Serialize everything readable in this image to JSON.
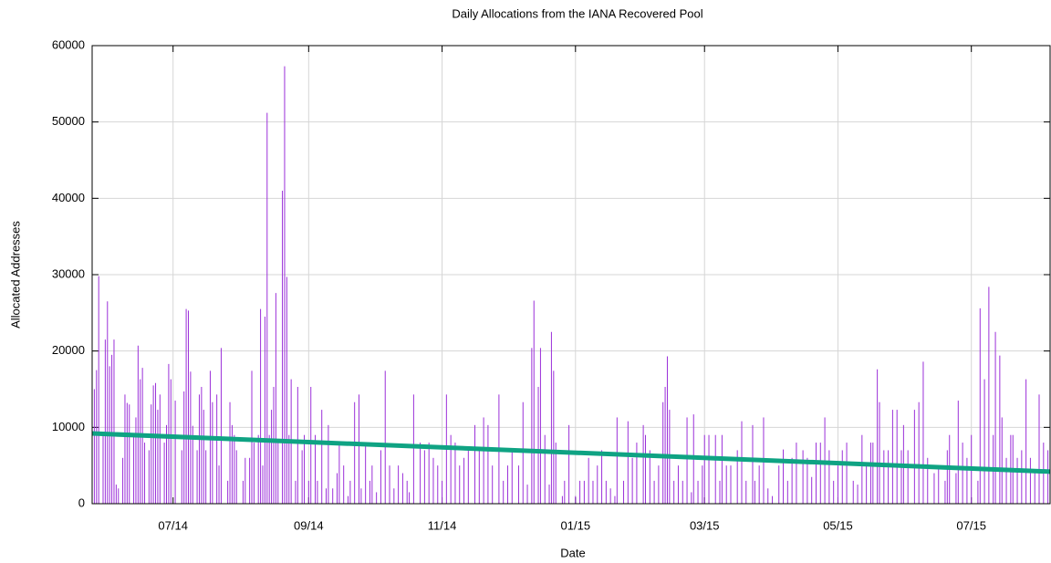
{
  "chart_data": {
    "type": "bar",
    "title": "Daily Allocations from the IANA Recovered Pool",
    "xlabel": "Date",
    "ylabel": "Allocated Addresses",
    "color": "#9b30d9",
    "x": [
      -36,
      -35,
      -34,
      -32,
      -31,
      -30,
      -29,
      -28,
      -27,
      -26,
      -25,
      -23,
      -22,
      -21,
      -20,
      -18,
      -17,
      -16,
      -15,
      -14,
      -13,
      -11,
      -10,
      -9,
      -8,
      -7,
      -6,
      -4,
      -3,
      -2,
      -1,
      1,
      4,
      5,
      6,
      7,
      8,
      9,
      11,
      12,
      13,
      14,
      15,
      17,
      18,
      20,
      21,
      22,
      25,
      26,
      27,
      28,
      29,
      32,
      33,
      35,
      36,
      37,
      39,
      40,
      41,
      42,
      43,
      44,
      45,
      46,
      47,
      48,
      50,
      51,
      52,
      53,
      54,
      56,
      57,
      59,
      60,
      62,
      63,
      65,
      66,
      68,
      70,
      71,
      73,
      75,
      76,
      78,
      80,
      81,
      83,
      85,
      86,
      88,
      90,
      91,
      93,
      95,
      97,
      99,
      101,
      103,
      105,
      107,
      108,
      110,
      113,
      115,
      117,
      119,
      121,
      123,
      125,
      127,
      129,
      131,
      133,
      135,
      138,
      140,
      142,
      144,
      146,
      149,
      151,
      153,
      155,
      158,
      160,
      162,
      164,
      165,
      167,
      168,
      170,
      172,
      173,
      174,
      175,
      178,
      179,
      181,
      184,
      186,
      188,
      190,
      192,
      194,
      196,
      198,
      200,
      202,
      203,
      206,
      208,
      210,
      212,
      215,
      216,
      218,
      220,
      222,
      224,
      225,
      226,
      227,
      229,
      231,
      233,
      235,
      237,
      238,
      240,
      242,
      243,
      245,
      248,
      250,
      251,
      253,
      255,
      258,
      260,
      262,
      265,
      266,
      268,
      270,
      272,
      274,
      277,
      279,
      281,
      283,
      285,
      288,
      290,
      292,
      294,
      296,
      298,
      300,
      302,
      304,
      306,
      308,
      311,
      313,
      315,
      317,
      319,
      320,
      322,
      323,
      325,
      327,
      329,
      331,
      333,
      334,
      336,
      339,
      341,
      343,
      345,
      348,
      350,
      353,
      354,
      355,
      358,
      359,
      361,
      363,
      365,
      368,
      369,
      371,
      373,
      375,
      376,
      378,
      379,
      381,
      383,
      384,
      386,
      388,
      390,
      392,
      394,
      396,
      398,
      400
    ],
    "values": [
      15000,
      17500,
      29800,
      9000,
      21500,
      26500,
      18000,
      19500,
      21500,
      2500,
      2000,
      6000,
      14300,
      13200,
      13000,
      9000,
      11300,
      20700,
      16300,
      17800,
      8000,
      7000,
      13000,
      15500,
      15800,
      12300,
      14300,
      8000,
      10300,
      18300,
      16300,
      13500,
      7000,
      14700,
      25500,
      25300,
      17300,
      10200,
      7000,
      14300,
      15300,
      12300,
      7000,
      17400,
      13300,
      14300,
      5000,
      20400,
      3000,
      13300,
      10300,
      9000,
      7000,
      3000,
      6000,
      6000,
      17400,
      8000,
      9000,
      25500,
      5000,
      24500,
      51200,
      9000,
      12300,
      15300,
      27600,
      8000,
      41000,
      57300,
      29700,
      9000,
      16300,
      3000,
      15300,
      7000,
      9000,
      3000,
      15300,
      9000,
      3000,
      12300,
      2000,
      10300,
      2000,
      4000,
      8000,
      5000,
      1000,
      3000,
      13300,
      14300,
      2000,
      8000,
      3000,
      5000,
      1500,
      7000,
      17400,
      5000,
      2000,
      5000,
      4000,
      3000,
      1500,
      14300,
      8000,
      7000,
      8000,
      6000,
      5000,
      3000,
      14300,
      9000,
      8000,
      5000,
      6000,
      7000,
      10300,
      7000,
      11300,
      10300,
      5000,
      14300,
      3000,
      5000,
      7000,
      5000,
      13300,
      2500,
      20400,
      26600,
      15300,
      20400,
      9000,
      2500,
      22500,
      17400,
      8000,
      1000,
      3000,
      10300,
      1000,
      3000,
      3000,
      6000,
      3000,
      5000,
      7000,
      3000,
      2000,
      1000,
      11300,
      3000,
      10800,
      6000,
      8000,
      10300,
      9000,
      7000,
      3000,
      5000,
      13300,
      15300,
      19300,
      12300,
      3000,
      5000,
      3000,
      11300,
      1500,
      11700,
      3000,
      5000,
      9000,
      9000,
      9000,
      3000,
      9000,
      5000,
      5000,
      7000,
      10800,
      3000,
      10300,
      3000,
      5000,
      11300,
      2000,
      1000,
      5000,
      7100,
      3000,
      6000,
      8000,
      7000,
      6000,
      3500,
      8000,
      8000,
      11300,
      7000,
      3000,
      5000,
      7000,
      8000,
      3000,
      2500,
      9000,
      5000,
      8000,
      8000,
      17600,
      13300,
      7000,
      7000,
      12300,
      12300,
      7000,
      10300,
      7000,
      12300,
      13300,
      18600,
      6000,
      4000,
      5000,
      3000,
      7000,
      9000,
      4000,
      13500,
      8000,
      6000,
      9000,
      3000,
      25600,
      16300,
      28400,
      9000,
      22500,
      19400,
      11300,
      6000,
      9000,
      9000,
      6000,
      7000,
      16300,
      6000,
      4000,
      14300,
      8000,
      7000
    ],
    "trend": {
      "x": [
        -37,
        401
      ],
      "values": [
        9200,
        4200
      ],
      "color": "#0fa383"
    },
    "xlim": [
      -37,
      401
    ],
    "xticks": [
      {
        "value": 0,
        "label": "07/14"
      },
      {
        "value": 62,
        "label": "09/14"
      },
      {
        "value": 123,
        "label": "11/14"
      },
      {
        "value": 184,
        "label": "01/15"
      },
      {
        "value": 243,
        "label": "03/15"
      },
      {
        "value": 304,
        "label": "05/15"
      },
      {
        "value": 365,
        "label": "07/15"
      }
    ],
    "ylim": [
      0,
      60000
    ],
    "yticks": [
      0,
      10000,
      20000,
      30000,
      40000,
      50000,
      60000
    ],
    "grid": true
  }
}
